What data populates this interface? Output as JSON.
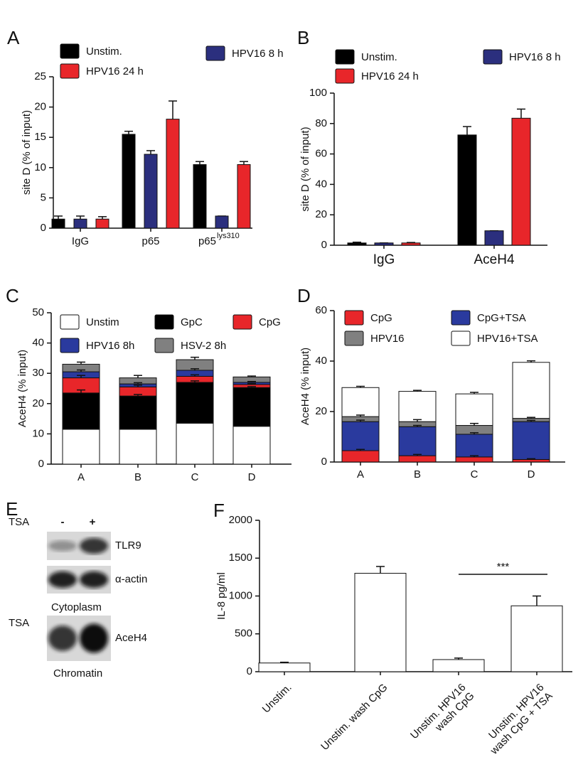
{
  "chart_data": [
    {
      "panel": "A",
      "type": "bar",
      "y_label": "site D  (% of input)",
      "categories": [
        "IgG",
        "p65",
        "p65"
      ],
      "category_superscripts": [
        null,
        null,
        "lys310"
      ],
      "ylim": [
        0,
        25
      ],
      "yticks": [
        0,
        5,
        10,
        15,
        20,
        25
      ],
      "series": [
        {
          "name": "Unstim.",
          "color": "#000000",
          "values": [
            1.5,
            15.5,
            10.5
          ],
          "errors": [
            0.5,
            0.5,
            0.5
          ]
        },
        {
          "name": "HPV16 8 h",
          "color": "#2b2f7e",
          "values": [
            1.5,
            12.2,
            2
          ],
          "errors": [
            0.5,
            0.6,
            0
          ]
        },
        {
          "name": "HPV16 24 h",
          "color": "#e8262a",
          "values": [
            1.5,
            18,
            10.5
          ],
          "errors": [
            0.4,
            3,
            0.5
          ]
        }
      ]
    },
    {
      "panel": "B",
      "type": "bar",
      "y_label": "site D  (% of input)",
      "categories": [
        "IgG",
        "AceH4"
      ],
      "ylim": [
        0,
        100
      ],
      "yticks": [
        0,
        20,
        40,
        60,
        80,
        100
      ],
      "series": [
        {
          "name": "Unstim.",
          "color": "#000000",
          "values": [
            1.5,
            72.5
          ],
          "errors": [
            0.5,
            5.5
          ]
        },
        {
          "name": "HPV16 8 h",
          "color": "#2b2f7e",
          "values": [
            1.5,
            9.5
          ],
          "errors": [
            0,
            0
          ]
        },
        {
          "name": "HPV16 24 h",
          "color": "#e8262a",
          "values": [
            1.5,
            83.5
          ],
          "errors": [
            0.3,
            6
          ]
        }
      ]
    },
    {
      "panel": "C",
      "type": "stacked_bar",
      "y_label": "AceH4 (% input)",
      "categories": [
        "A",
        "B",
        "C",
        "D"
      ],
      "ylim": [
        0,
        50
      ],
      "yticks": [
        0,
        10,
        20,
        30,
        40,
        50
      ],
      "series": [
        {
          "name": "Unstim",
          "color": "#ffffff",
          "values": [
            11.5,
            11.5,
            13.5,
            12.5
          ]
        },
        {
          "name": "GpC",
          "color": "#000000",
          "values": [
            12,
            11,
            13.5,
            12.8
          ],
          "errors": [
            1,
            0.5,
            0.5,
            0.3
          ]
        },
        {
          "name": "CpG",
          "color": "#e8262a",
          "values": [
            5,
            3,
            2,
            1
          ],
          "errors": [
            0.8,
            0.6,
            0.5,
            0.3
          ]
        },
        {
          "name": "HPV16 8h",
          "color": "#2a3a9e",
          "values": [
            2,
            1,
            2,
            0.7
          ],
          "errors": [
            0.6,
            0.4,
            0.5,
            0.3
          ]
        },
        {
          "name": "HSV-2 8h",
          "color": "#808080",
          "values": [
            2.5,
            2,
            3.5,
            1.8
          ],
          "errors": [
            0.7,
            0.8,
            0.8,
            0.3
          ]
        }
      ]
    },
    {
      "panel": "D",
      "type": "stacked_bar",
      "y_label": "AceH4 (% input)",
      "categories": [
        "A",
        "B",
        "C",
        "D"
      ],
      "ylim": [
        0,
        60
      ],
      "yticks": [
        0,
        20,
        40,
        60
      ],
      "series": [
        {
          "name": "CpG",
          "color": "#e8262a",
          "values": [
            4.5,
            2.5,
            2,
            1
          ],
          "errors": [
            0.5,
            0.5,
            0.5,
            0.3
          ]
        },
        {
          "name": "CpG+TSA",
          "color": "#2a3a9e",
          "values": [
            11.5,
            11.5,
            9,
            15
          ],
          "errors": [
            0.6,
            0.5,
            0.6,
            0.5
          ]
        },
        {
          "name": "HPV16",
          "color": "#808080",
          "values": [
            2,
            2,
            3.5,
            1.3
          ],
          "errors": [
            0.6,
            0.8,
            0.8,
            0.4
          ]
        },
        {
          "name": "HPV16+TSA",
          "color": "#ffffff",
          "values": [
            11.5,
            12,
            12.5,
            22.2
          ],
          "errors": [
            0.5,
            0.4,
            0.6,
            0.6
          ]
        }
      ]
    },
    {
      "panel": "F",
      "type": "bar",
      "y_label": "IL-8 pg/ml",
      "categories": [
        [
          "Unstim."
        ],
        [
          "Unstim. wash CpG"
        ],
        [
          "Unstim. HPV16",
          "wash CpG"
        ],
        [
          "Unstim. HPV16",
          "wash CpG + TSA"
        ]
      ],
      "ylim": [
        0,
        2000
      ],
      "yticks": [
        0,
        500,
        1000,
        1500,
        2000
      ],
      "color": "#ffffff",
      "values": [
        115,
        1300,
        160,
        870
      ],
      "errors": [
        10,
        90,
        20,
        130
      ],
      "annotation": "***"
    }
  ],
  "blot_panel": {
    "panel": "E",
    "groups": [
      {
        "treatment": "TSA",
        "lanes": [
          "-",
          "+"
        ],
        "bands": [
          "TLR9",
          "α-actin"
        ],
        "fraction": "Cytoplasm"
      },
      {
        "treatment": "TSA",
        "lanes": [
          "-",
          "+"
        ],
        "bands": [
          "AceH4"
        ],
        "fraction": "Chromatin"
      }
    ]
  }
}
